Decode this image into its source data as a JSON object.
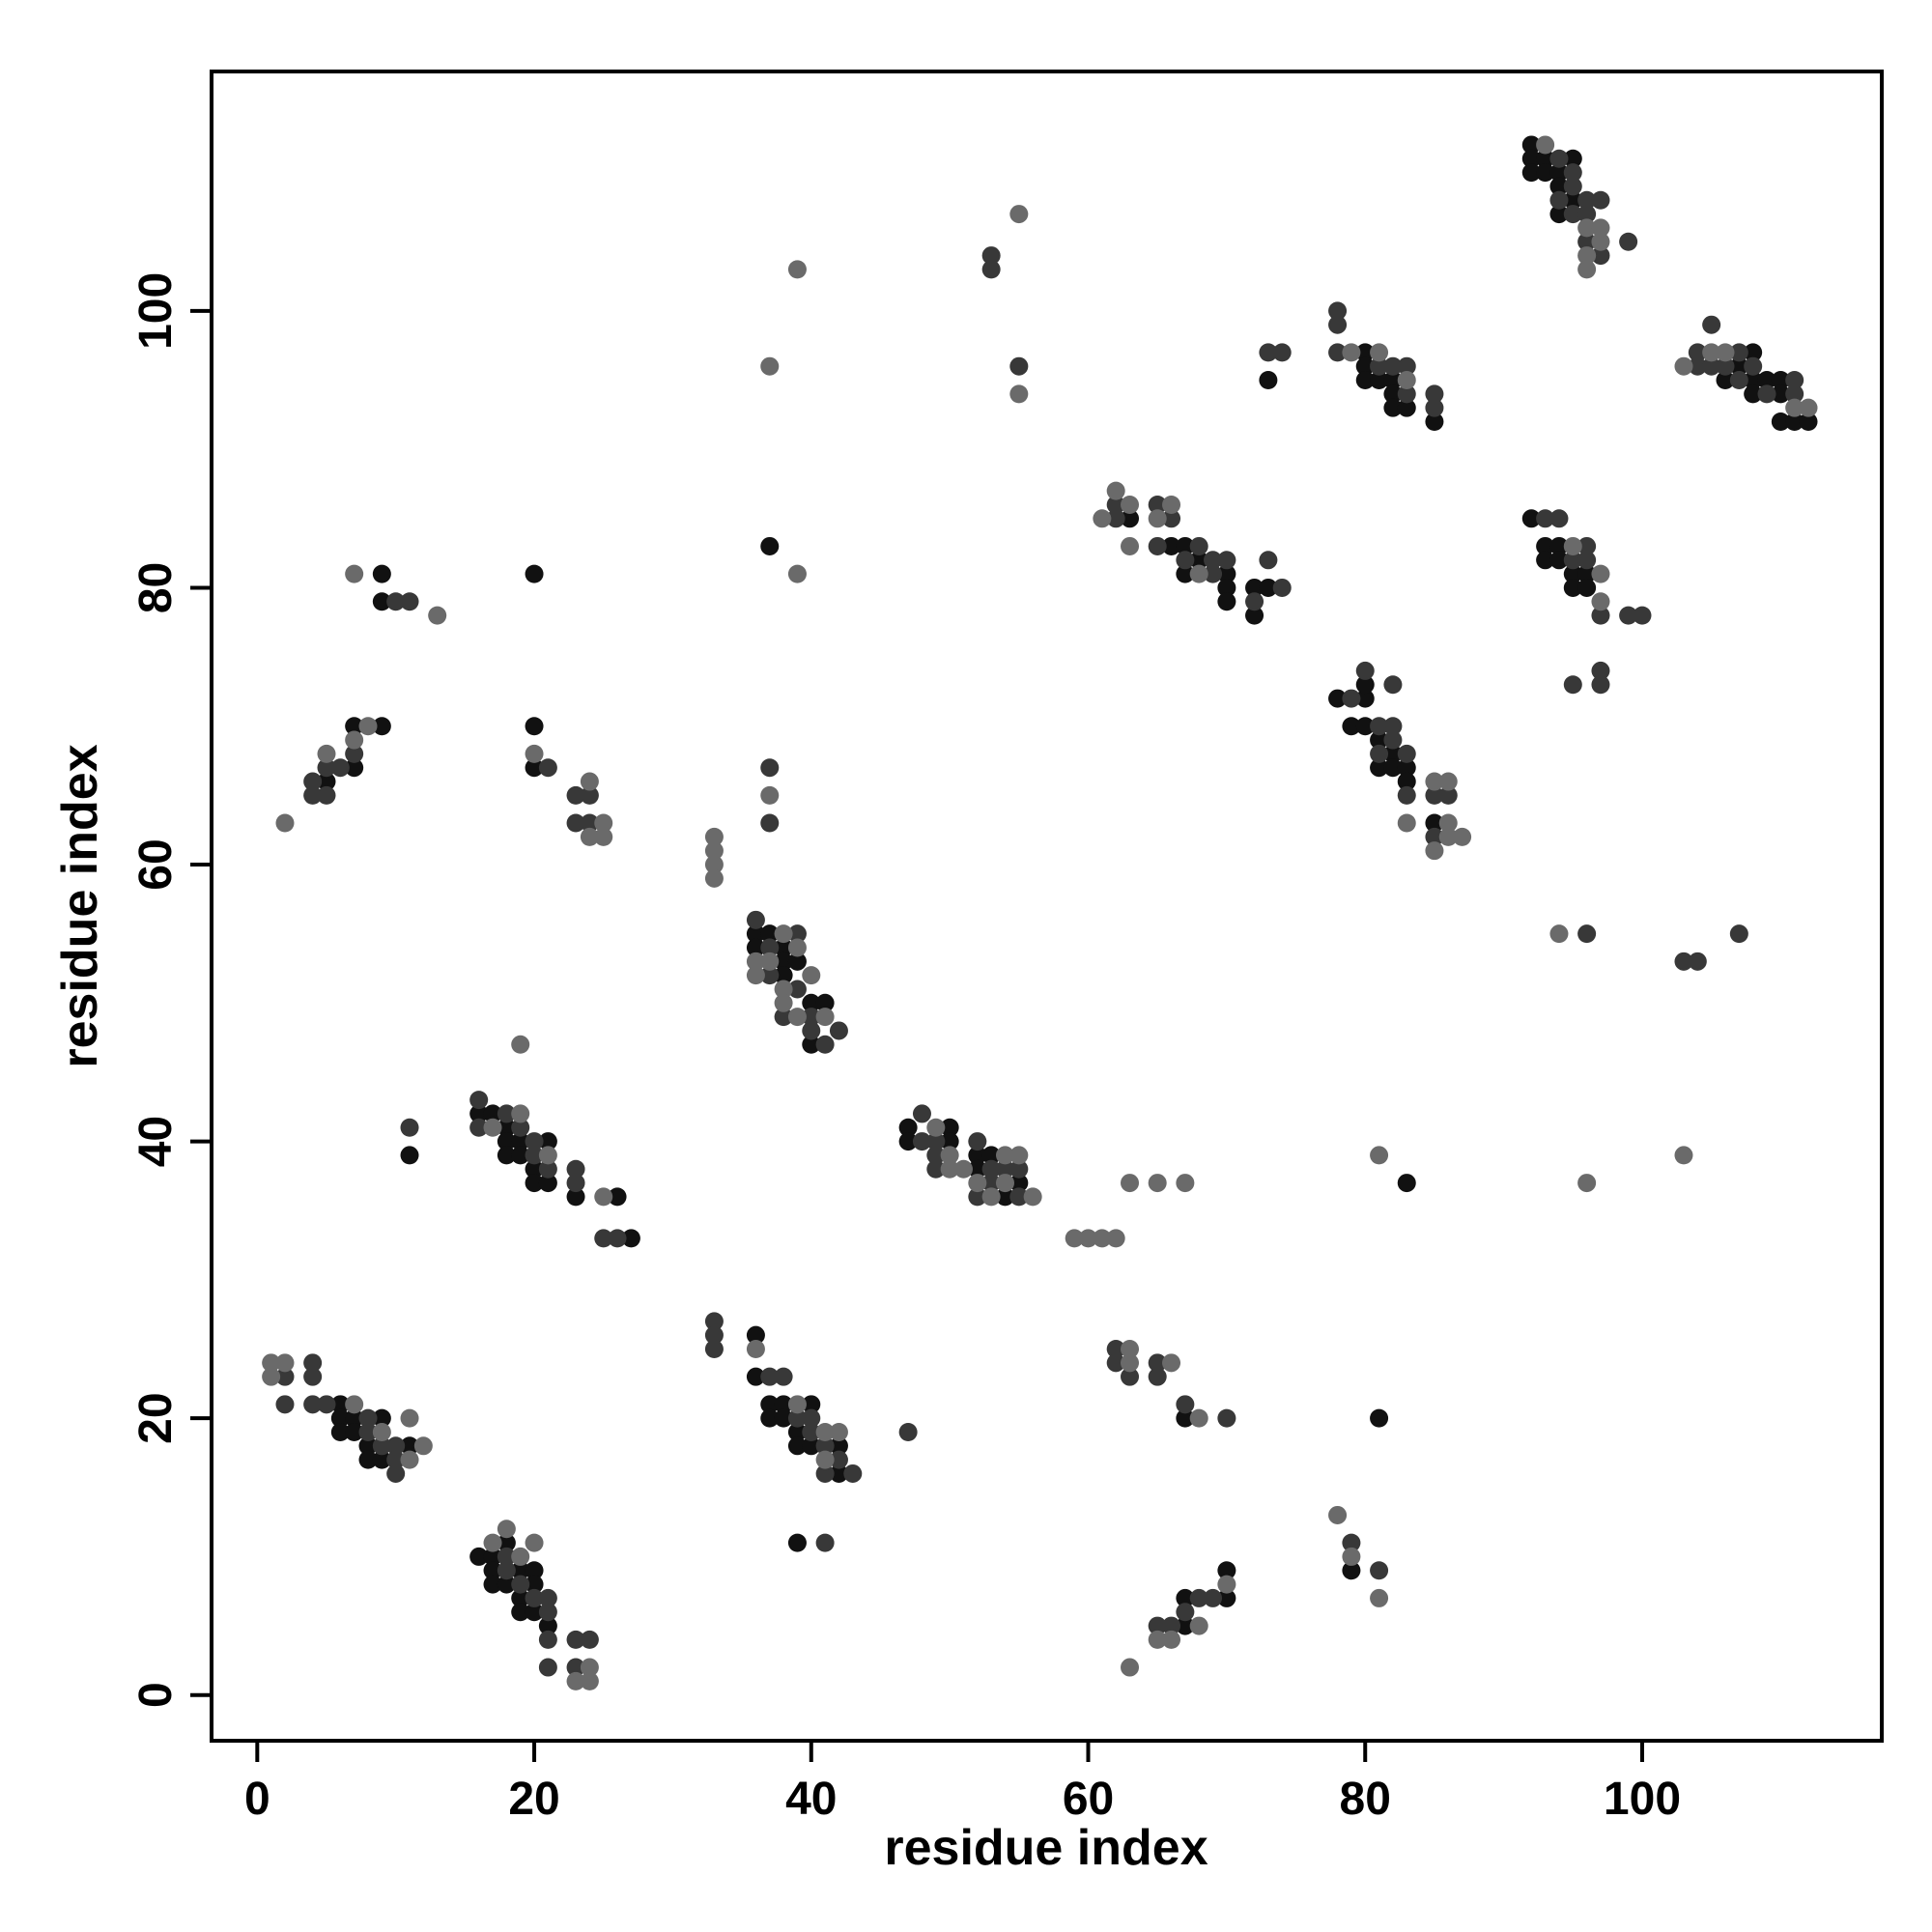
{
  "chart_data": {
    "type": "scatter",
    "x_label": "residue index",
    "y_label": "residue index",
    "xlim": [
      -3.3,
      117.3
    ],
    "ylim": [
      -3.3,
      117.3
    ],
    "xticks": [
      0,
      20,
      40,
      60,
      80,
      100
    ],
    "yticks": [
      0,
      20,
      40,
      60,
      80,
      100
    ],
    "series": [
      {
        "color": "#111111",
        "x": [
          6,
          6,
          7,
          9,
          6,
          7,
          8,
          11,
          8,
          9,
          18,
          16,
          17,
          17,
          19,
          20,
          17,
          18,
          20,
          19,
          19,
          20,
          21,
          36,
          36,
          37,
          38,
          40,
          37,
          38,
          39,
          39,
          40,
          42,
          42,
          39,
          16,
          17,
          18,
          18,
          19,
          21,
          18,
          19,
          20,
          20,
          21,
          23,
          26,
          27,
          11,
          36,
          37,
          36,
          38,
          38,
          39,
          38,
          40,
          41,
          40,
          47,
          50,
          47,
          50,
          52,
          53,
          52,
          55,
          54,
          67,
          67,
          70,
          70,
          67,
          79,
          81,
          83,
          5,
          7,
          7,
          9,
          9,
          9,
          20,
          20,
          20,
          37,
          63,
          66,
          67,
          68,
          67,
          70,
          70,
          70,
          72,
          73,
          72,
          73,
          78,
          80,
          80,
          79,
          80,
          81,
          82,
          81,
          82,
          83,
          83,
          85,
          80,
          80,
          80,
          81,
          82,
          82,
          82,
          83,
          85,
          92,
          92,
          93,
          95,
          92,
          93,
          94,
          94,
          95,
          94,
          92,
          93,
          94,
          93,
          94,
          95,
          96,
          95,
          96,
          108,
          107,
          108,
          109,
          110,
          108,
          110,
          110,
          111,
          112,
          106
        ],
        "values": [
          21,
          20,
          20,
          20,
          19,
          19,
          18,
          18,
          17,
          17,
          11,
          10,
          10,
          9,
          9,
          9,
          8,
          8,
          8,
          7,
          6,
          6,
          5,
          26,
          23,
          21,
          21,
          21,
          20,
          20,
          19,
          18,
          18,
          18,
          16,
          11,
          42,
          42,
          41,
          40,
          40,
          40,
          39,
          39,
          38,
          37,
          37,
          36,
          36,
          33,
          39,
          55,
          55,
          54,
          54,
          53,
          53,
          52,
          50,
          50,
          47,
          41,
          41,
          40,
          40,
          39,
          39,
          38,
          37,
          36,
          5,
          7,
          7,
          9,
          20,
          9,
          20,
          37,
          66,
          67,
          70,
          70,
          81,
          79,
          81,
          70,
          67,
          83,
          85,
          83,
          83,
          82,
          81,
          81,
          80,
          79,
          80,
          80,
          78,
          95,
          72,
          72,
          73,
          70,
          70,
          69,
          68,
          67,
          67,
          67,
          66,
          63,
          97,
          96,
          95,
          95,
          95,
          94,
          93,
          93,
          92,
          112,
          111,
          111,
          111,
          110,
          110,
          110,
          109,
          108,
          107,
          85,
          83,
          83,
          82,
          82,
          81,
          81,
          80,
          80,
          97,
          96,
          95,
          95,
          95,
          94,
          94,
          92,
          92,
          92,
          95
        ]
      },
      {
        "color": "#383838",
        "x": [
          4,
          2,
          4,
          2,
          4,
          5,
          8,
          8,
          9,
          10,
          10,
          10,
          18,
          18,
          19,
          20,
          21,
          21,
          21,
          21,
          23,
          24,
          23,
          33,
          33,
          33,
          37,
          38,
          39,
          40,
          40,
          41,
          42,
          41,
          43,
          47,
          41,
          16,
          18,
          16,
          19,
          20,
          20,
          21,
          23,
          23,
          25,
          26,
          11,
          36,
          39,
          37,
          37,
          39,
          38,
          40,
          40,
          42,
          41,
          37,
          37,
          48,
          48,
          49,
          49,
          49,
          52,
          53,
          54,
          55,
          53,
          52,
          55,
          65,
          66,
          67,
          68,
          69,
          62,
          62,
          63,
          65,
          65,
          67,
          70,
          79,
          81,
          4,
          4,
          5,
          5,
          6,
          7,
          10,
          11,
          21,
          23,
          24,
          23,
          24,
          53,
          53,
          55,
          62,
          62,
          65,
          66,
          65,
          67,
          68,
          69,
          70,
          69,
          74,
          72,
          73,
          73,
          74,
          79,
          80,
          82,
          81,
          82,
          82,
          81,
          83,
          83,
          85,
          86,
          85,
          78,
          78,
          78,
          81,
          82,
          83,
          83,
          85,
          85,
          94,
          95,
          95,
          94,
          96,
          97,
          95,
          96,
          96,
          99,
          97,
          93,
          94,
          96,
          95,
          96,
          97,
          99,
          100,
          95,
          97,
          97,
          96,
          104,
          105,
          104,
          107,
          105,
          106,
          107,
          111,
          109,
          111,
          108,
          103,
          104,
          107
        ],
        "values": [
          24,
          23,
          23,
          21,
          21,
          21,
          20,
          19,
          18,
          18,
          17,
          16,
          10,
          9,
          8,
          7,
          7,
          6,
          4,
          2,
          4,
          4,
          2,
          27,
          26,
          25,
          23,
          23,
          20,
          20,
          19,
          18,
          17,
          16,
          16,
          19,
          11,
          43,
          42,
          41,
          41,
          40,
          39,
          38,
          38,
          37,
          33,
          33,
          41,
          56,
          55,
          54,
          52,
          51,
          49,
          49,
          48,
          48,
          47,
          67,
          63,
          42,
          40,
          40,
          39,
          38,
          40,
          38,
          38,
          38,
          37,
          36,
          36,
          5,
          5,
          6,
          7,
          7,
          25,
          24,
          23,
          24,
          23,
          21,
          20,
          11,
          9,
          66,
          65,
          65,
          67,
          67,
          68,
          79,
          79,
          67,
          65,
          65,
          63,
          63,
          104,
          103,
          96,
          85,
          86,
          86,
          85,
          83,
          82,
          83,
          82,
          82,
          81,
          80,
          79,
          82,
          97,
          97,
          72,
          74,
          73,
          70,
          70,
          69,
          68,
          68,
          65,
          65,
          65,
          62,
          100,
          99,
          97,
          96,
          96,
          96,
          94,
          94,
          93,
          111,
          110,
          109,
          108,
          108,
          108,
          107,
          107,
          105,
          105,
          104,
          85,
          85,
          83,
          82,
          82,
          78,
          78,
          78,
          73,
          74,
          73,
          55,
          96,
          99,
          97,
          97,
          96,
          96,
          95,
          95,
          94,
          94,
          96,
          53,
          53,
          55
        ]
      },
      {
        "color": "#6a6a6a",
        "x": [
          1,
          2,
          1,
          7,
          11,
          9,
          12,
          11,
          18,
          17,
          20,
          19,
          24,
          23,
          24,
          36,
          39,
          41,
          42,
          41,
          19,
          17,
          21,
          25,
          19,
          38,
          39,
          36,
          37,
          36,
          40,
          38,
          38,
          39,
          41,
          33,
          33,
          33,
          33,
          37,
          49,
          50,
          50,
          51,
          54,
          55,
          52,
          54,
          53,
          56,
          59,
          60,
          61,
          62,
          63,
          65,
          66,
          68,
          70,
          63,
          63,
          66,
          68,
          63,
          65,
          67,
          78,
          79,
          81,
          81,
          2,
          5,
          7,
          8,
          7,
          13,
          20,
          24,
          25,
          24,
          25,
          37,
          39,
          39,
          55,
          55,
          61,
          62,
          63,
          63,
          66,
          65,
          68,
          83,
          85,
          86,
          86,
          86,
          87,
          85,
          79,
          81,
          83,
          93,
          96,
          97,
          97,
          96,
          96,
          95,
          97,
          97,
          94,
          96,
          103,
          105,
          106,
          111,
          112,
          103
        ],
        "values": [
          24,
          24,
          23,
          21,
          20,
          19,
          18,
          17,
          12,
          11,
          11,
          10,
          2,
          1,
          1,
          25,
          21,
          19,
          19,
          17,
          42,
          41,
          39,
          36,
          47,
          55,
          54,
          53,
          53,
          52,
          52,
          51,
          50,
          49,
          49,
          62,
          61,
          60,
          59,
          65,
          41,
          39,
          38,
          38,
          39,
          39,
          37,
          37,
          36,
          36,
          33,
          33,
          33,
          33,
          2,
          4,
          4,
          5,
          8,
          25,
          24,
          24,
          20,
          37,
          37,
          37,
          13,
          10,
          7,
          39,
          63,
          68,
          69,
          70,
          81,
          78,
          68,
          66,
          63,
          62,
          62,
          96,
          103,
          81,
          107,
          94,
          85,
          87,
          86,
          83,
          86,
          85,
          81,
          63,
          66,
          66,
          63,
          62,
          62,
          61,
          97,
          97,
          95,
          112,
          106,
          106,
          105,
          104,
          103,
          83,
          81,
          79,
          55,
          37,
          96,
          97,
          97,
          93,
          93,
          39
        ]
      }
    ]
  }
}
